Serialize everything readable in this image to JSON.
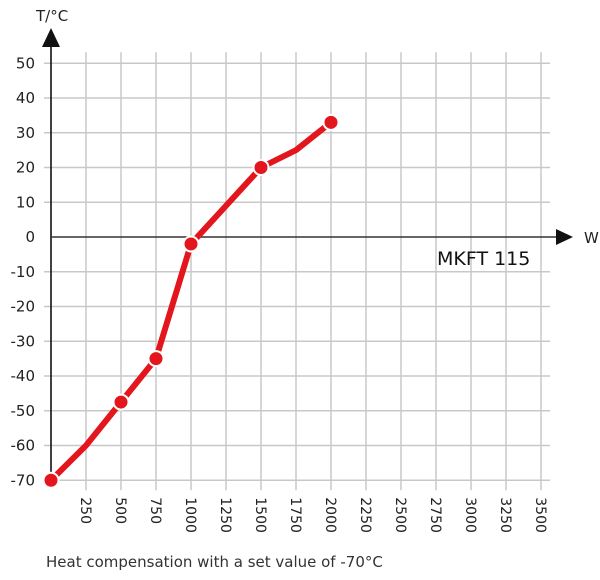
{
  "chart_data": {
    "type": "line",
    "title": "",
    "model_label": "MKFT 115",
    "xlabel": "W",
    "ylabel": "T/°C",
    "caption": "Heat compensation with a set value of -70°C",
    "xlim": [
      0,
      3500
    ],
    "ylim": [
      -70,
      50
    ],
    "x_ticks": [
      250,
      500,
      750,
      1000,
      1250,
      1500,
      1750,
      2000,
      2250,
      2500,
      2750,
      3000,
      3250,
      3500
    ],
    "y_ticks": [
      50,
      40,
      30,
      20,
      10,
      0,
      -10,
      -20,
      -30,
      -40,
      -50,
      -60,
      -70
    ],
    "grid": true,
    "legend": null,
    "series": [
      {
        "name": "MKFT 115",
        "color": "#e3161d",
        "x": [
          0,
          250,
          500,
          750,
          1000,
          1250,
          1500,
          1750,
          2000
        ],
        "y": [
          -70,
          -60,
          -47.5,
          -35,
          -2,
          9,
          20,
          25,
          33
        ],
        "markers_at": [
          0,
          500,
          750,
          1000,
          1500,
          2000
        ]
      }
    ]
  },
  "colors": {
    "line": "#e3161d",
    "grid": "#c8c8c8",
    "axis": "#111111"
  }
}
